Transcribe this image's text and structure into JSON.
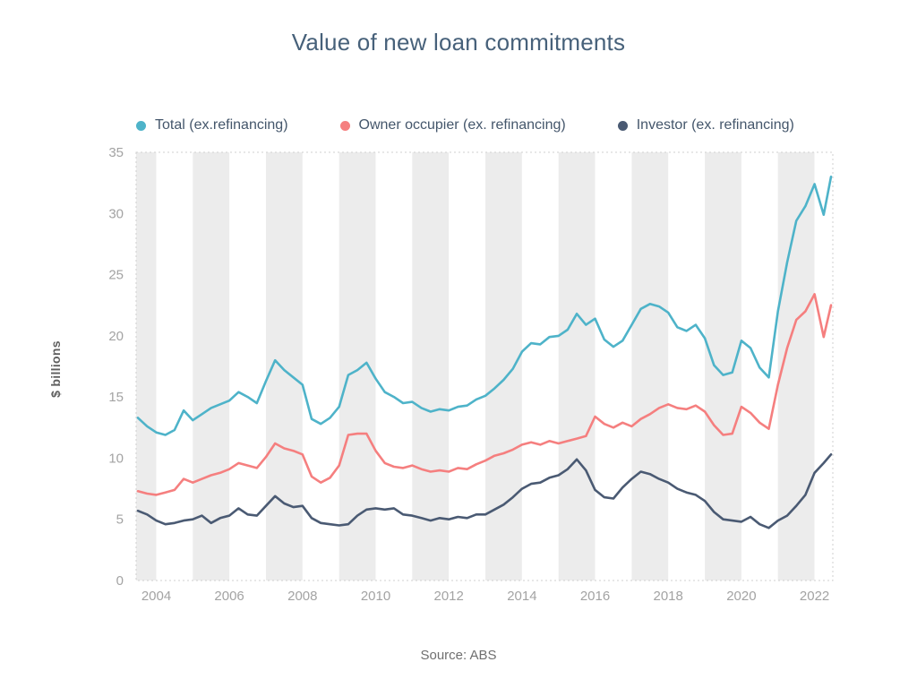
{
  "page": {
    "title": "Value of new loan commitments",
    "source": "Source: ABS"
  },
  "chart_data": {
    "type": "line",
    "title": "Value of new loan commitments",
    "ylabel": "$ billions",
    "source": "Source: ABS",
    "legend_position": "top",
    "grid": false,
    "band_color": "#ececec",
    "border_color": "#cfcfcf",
    "tick_color": "#a3a3a3",
    "xlim": [
      2003.45,
      2022.5
    ],
    "ylim": [
      0,
      35
    ],
    "x_ticks": [
      2004,
      2006,
      2008,
      2010,
      2012,
      2014,
      2016,
      2018,
      2020,
      2022
    ],
    "y_ticks": [
      0,
      5,
      10,
      15,
      20,
      25,
      30,
      35
    ],
    "x": [
      2003.5,
      2003.75,
      2004,
      2004.25,
      2004.5,
      2004.75,
      2005,
      2005.25,
      2005.5,
      2005.75,
      2006,
      2006.25,
      2006.5,
      2006.75,
      2007,
      2007.25,
      2007.5,
      2007.75,
      2008,
      2008.25,
      2008.5,
      2008.75,
      2009,
      2009.25,
      2009.5,
      2009.75,
      2010,
      2010.25,
      2010.5,
      2010.75,
      2011,
      2011.25,
      2011.5,
      2011.75,
      2012,
      2012.25,
      2012.5,
      2012.75,
      2013,
      2013.25,
      2013.5,
      2013.75,
      2014,
      2014.25,
      2014.5,
      2014.75,
      2015,
      2015.25,
      2015.5,
      2015.75,
      2016,
      2016.25,
      2016.5,
      2016.75,
      2017,
      2017.25,
      2017.5,
      2017.75,
      2018,
      2018.25,
      2018.5,
      2018.75,
      2019,
      2019.25,
      2019.5,
      2019.75,
      2020,
      2020.25,
      2020.5,
      2020.75,
      2021,
      2021.25,
      2021.5,
      2021.75,
      2022,
      2022.25,
      2022.45
    ],
    "series": [
      {
        "id": "total",
        "name": "Total (ex.refinancing)",
        "color": "#4eb3c9",
        "values": [
          13.3,
          12.6,
          12.1,
          11.9,
          12.3,
          13.9,
          13.1,
          13.6,
          14.1,
          14.4,
          14.7,
          15.4,
          15.0,
          14.5,
          16.3,
          18.0,
          17.2,
          16.6,
          16.0,
          13.2,
          12.8,
          13.3,
          14.2,
          16.8,
          17.2,
          17.8,
          16.5,
          15.4,
          15.0,
          14.5,
          14.6,
          14.1,
          13.8,
          14.0,
          13.9,
          14.2,
          14.3,
          14.8,
          15.1,
          15.7,
          16.4,
          17.3,
          18.7,
          19.4,
          19.3,
          19.9,
          20.0,
          20.5,
          21.8,
          20.9,
          21.4,
          19.7,
          19.1,
          19.6,
          20.9,
          22.2,
          22.6,
          22.4,
          21.9,
          20.7,
          20.4,
          20.9,
          19.8,
          17.6,
          16.8,
          17.0,
          19.6,
          19.0,
          17.4,
          16.6,
          22.0,
          26.0,
          29.4,
          30.6,
          32.4,
          29.9,
          33.0
        ]
      },
      {
        "id": "owner-occupier",
        "name": "Owner occupier (ex. refinancing)",
        "color": "#f57f7f",
        "values": [
          7.3,
          7.1,
          7.0,
          7.2,
          7.4,
          8.3,
          8.0,
          8.3,
          8.6,
          8.8,
          9.1,
          9.6,
          9.4,
          9.2,
          10.1,
          11.2,
          10.8,
          10.6,
          10.3,
          8.5,
          8.0,
          8.4,
          9.4,
          11.9,
          12.0,
          12.0,
          10.6,
          9.6,
          9.3,
          9.2,
          9.4,
          9.1,
          8.9,
          9.0,
          8.9,
          9.2,
          9.1,
          9.5,
          9.8,
          10.2,
          10.4,
          10.7,
          11.1,
          11.3,
          11.1,
          11.4,
          11.2,
          11.4,
          11.6,
          11.8,
          13.4,
          12.8,
          12.5,
          12.9,
          12.6,
          13.2,
          13.6,
          14.1,
          14.4,
          14.1,
          14.0,
          14.3,
          13.8,
          12.7,
          11.9,
          12.0,
          14.2,
          13.7,
          12.9,
          12.4,
          16.0,
          19.0,
          21.3,
          22.0,
          23.4,
          19.9,
          22.5
        ]
      },
      {
        "id": "investor",
        "name": "Investor (ex. refinancing)",
        "color": "#4a5a73",
        "values": [
          5.7,
          5.4,
          4.9,
          4.6,
          4.7,
          4.9,
          5.0,
          5.3,
          4.7,
          5.1,
          5.3,
          5.9,
          5.4,
          5.3,
          6.1,
          6.9,
          6.3,
          6.0,
          6.1,
          5.1,
          4.7,
          4.6,
          4.5,
          4.6,
          5.3,
          5.8,
          5.9,
          5.8,
          5.9,
          5.4,
          5.3,
          5.1,
          4.9,
          5.1,
          5.0,
          5.2,
          5.1,
          5.4,
          5.4,
          5.8,
          6.2,
          6.8,
          7.5,
          7.9,
          8.0,
          8.4,
          8.6,
          9.1,
          9.9,
          9.0,
          7.4,
          6.8,
          6.7,
          7.6,
          8.3,
          8.9,
          8.7,
          8.3,
          8.0,
          7.5,
          7.2,
          7.0,
          6.5,
          5.6,
          5.0,
          4.9,
          4.8,
          5.2,
          4.6,
          4.3,
          4.9,
          5.3,
          6.1,
          7.0,
          8.8,
          9.6,
          10.3
        ]
      }
    ]
  }
}
